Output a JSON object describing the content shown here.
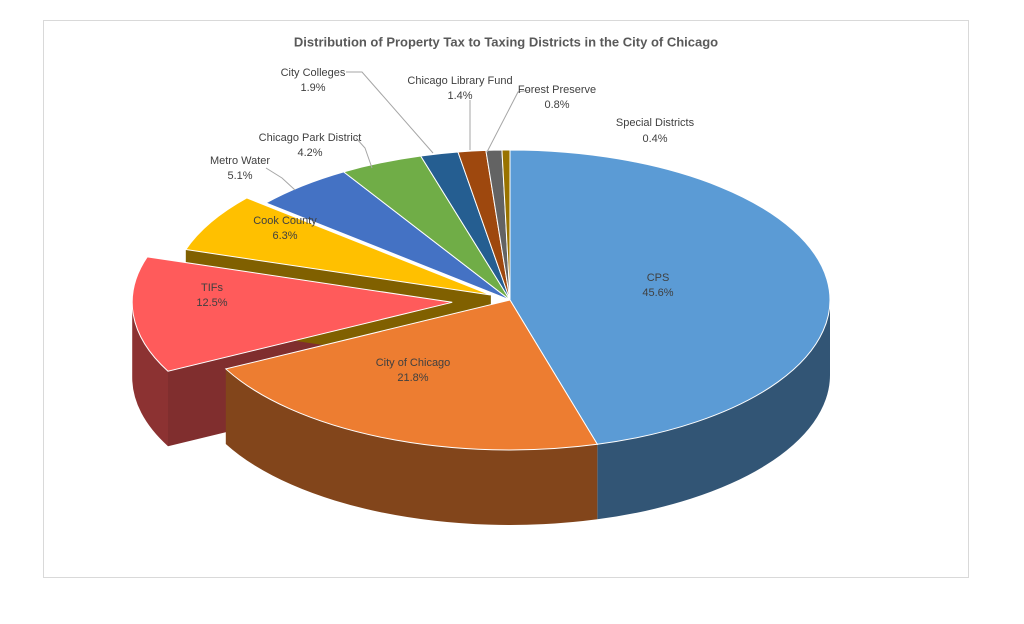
{
  "chart_data": {
    "type": "pie",
    "title": "Distribution of Property Tax to Taxing Districts in the City of Chicago",
    "categories": [
      "CPS",
      "City of Chicago",
      "TIFs",
      "Cook County",
      "Metro Water",
      "Chicago Park District",
      "City Colleges",
      "Chicago Library Fund",
      "Forest Preserve",
      "Special Districts"
    ],
    "values": [
      45.6,
      21.8,
      12.5,
      6.3,
      5.1,
      4.2,
      1.9,
      1.4,
      0.8,
      0.4
    ],
    "value_labels": [
      "45.6%",
      "21.8%",
      "12.5%",
      "6.3%",
      "5.1%",
      "4.2%",
      "1.9%",
      "1.4%",
      "0.8%",
      "0.4%"
    ],
    "colors": [
      "#5b9bd5",
      "#ed7d31",
      "#ff5b5b",
      "#ffc000",
      "#4472c4",
      "#70ad47",
      "#255e91",
      "#9e480e",
      "#636363",
      "#997300"
    ]
  }
}
